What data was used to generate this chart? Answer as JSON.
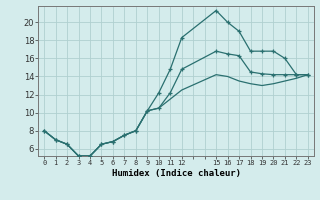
{
  "xlabel": "Humidex (Indice chaleur)",
  "bg_color": "#d4ecec",
  "grid_color": "#b0d0d0",
  "line_color": "#2a7070",
  "xlim": [
    -0.5,
    23.5
  ],
  "ylim": [
    5.2,
    21.8
  ],
  "yticks": [
    6,
    8,
    10,
    12,
    14,
    16,
    18,
    20
  ],
  "ytick_labels": [
    "6",
    "8",
    "10",
    "12",
    "14",
    "16",
    "18",
    "20"
  ],
  "x_positions": [
    0,
    1,
    2,
    3,
    4,
    5,
    6,
    7,
    8,
    9,
    10,
    11,
    12,
    13,
    14,
    15,
    16,
    17,
    18,
    19,
    20,
    21,
    22,
    23
  ],
  "x_labels": [
    "0",
    "1",
    "2",
    "3",
    "4",
    "5",
    "6",
    "7",
    "8",
    "9",
    "10",
    "11",
    "12",
    "",
    "",
    "15",
    "16",
    "17",
    "18",
    "19",
    "20",
    "21",
    "22",
    "23"
  ],
  "line1_x": [
    0,
    1,
    2,
    3,
    4,
    5,
    6,
    7,
    8,
    9,
    10,
    11,
    12,
    15,
    16,
    17,
    18,
    19,
    20,
    21,
    22,
    23
  ],
  "line1_y": [
    8.0,
    7.0,
    6.5,
    5.2,
    5.2,
    6.5,
    6.8,
    7.5,
    8.0,
    10.2,
    12.2,
    14.8,
    18.3,
    21.3,
    20.0,
    19.0,
    16.8,
    16.8,
    16.8,
    16.0,
    14.2,
    14.2
  ],
  "line2_x": [
    0,
    1,
    2,
    3,
    4,
    5,
    6,
    7,
    8,
    9,
    10,
    11,
    12,
    15,
    16,
    17,
    18,
    19,
    20,
    21,
    22,
    23
  ],
  "line2_y": [
    8.0,
    7.0,
    6.5,
    5.2,
    5.2,
    6.5,
    6.8,
    7.5,
    8.0,
    10.2,
    10.5,
    12.2,
    14.8,
    16.8,
    16.5,
    16.3,
    14.5,
    14.3,
    14.2,
    14.2,
    14.2,
    14.2
  ],
  "line3_x": [
    0,
    1,
    2,
    3,
    4,
    5,
    6,
    7,
    8,
    9,
    10,
    11,
    12,
    15,
    16,
    17,
    18,
    19,
    20,
    21,
    22,
    23
  ],
  "line3_y": [
    8.0,
    7.0,
    6.5,
    5.2,
    5.2,
    6.5,
    6.8,
    7.5,
    8.0,
    10.2,
    10.5,
    11.5,
    12.5,
    14.2,
    14.0,
    13.5,
    13.2,
    13.0,
    13.2,
    13.5,
    13.8,
    14.2
  ]
}
